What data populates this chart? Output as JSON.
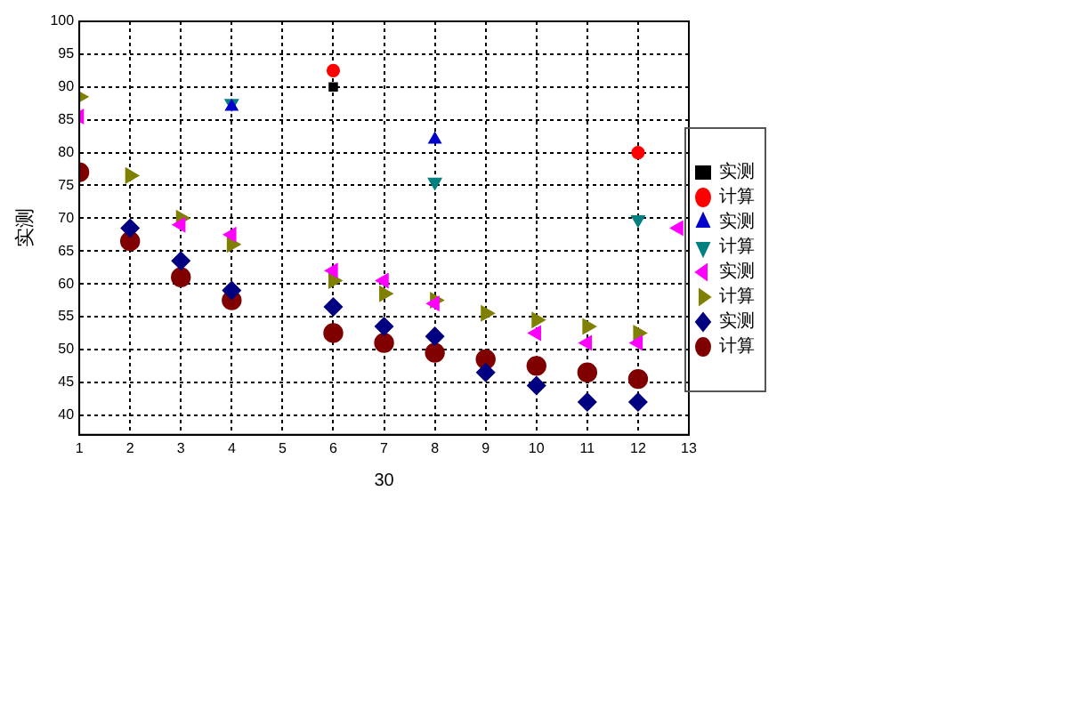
{
  "chart_data": {
    "type": "scatter",
    "xlabel": "30",
    "ylabel": "实测",
    "xlim": [
      1,
      13
    ],
    "xticks": [
      1,
      2,
      3,
      4,
      5,
      6,
      7,
      8,
      9,
      10,
      11,
      12,
      13
    ],
    "ylim": [
      37,
      100
    ],
    "yticks": [
      40,
      45,
      50,
      55,
      60,
      65,
      70,
      75,
      80,
      85,
      90,
      95,
      100
    ],
    "grid": true,
    "legend": "right",
    "series": [
      {
        "name": "实测",
        "color": "#000000",
        "marker": "square",
        "x": [
          6
        ],
        "values": [
          90
        ]
      },
      {
        "name": "计算",
        "color": "#ff0000",
        "marker": "circle",
        "x": [
          6,
          12
        ],
        "values": [
          92.5,
          80
        ]
      },
      {
        "name": "实测",
        "color": "#0000cc",
        "marker": "triangle",
        "x": [
          4,
          8
        ],
        "values": [
          87,
          82
        ]
      },
      {
        "name": "计算",
        "color": "#008080",
        "marker": "triangle-down",
        "x": [
          4,
          8,
          12
        ],
        "values": [
          87.5,
          75.5,
          69.8
        ]
      },
      {
        "name": "实测",
        "color": "#ff00ff",
        "marker": "triangle-left",
        "x": [
          1,
          3,
          4,
          6,
          7,
          8,
          10,
          11,
          12,
          12.8
        ],
        "values": [
          85.5,
          69,
          67.5,
          62,
          60.5,
          57,
          52.5,
          51,
          51,
          68.5
        ]
      },
      {
        "name": "计算",
        "color": "#808000",
        "marker": "triangle-right",
        "x": [
          1,
          2,
          3,
          4,
          6,
          7,
          8,
          9,
          10,
          11,
          12
        ],
        "values": [
          88.5,
          76.5,
          70,
          66,
          60.5,
          58.5,
          57.5,
          55.5,
          54.5,
          53.5,
          52.5
        ]
      },
      {
        "name": "实测",
        "color": "#000080",
        "marker": "diamond",
        "x": [
          2,
          3,
          4,
          6,
          7,
          8,
          9,
          10,
          11,
          12
        ],
        "values": [
          68.5,
          63.5,
          59,
          56.5,
          53.5,
          52,
          46.5,
          44.5,
          42,
          42
        ]
      },
      {
        "name": "计算",
        "color": "#800000",
        "marker": "circle",
        "x": [
          1,
          2,
          3,
          4,
          6,
          7,
          8,
          9,
          10,
          11,
          12
        ],
        "values": [
          77,
          66.5,
          61,
          57.5,
          52.5,
          51,
          49.5,
          48.5,
          47.5,
          46.5,
          45.5
        ]
      }
    ]
  }
}
